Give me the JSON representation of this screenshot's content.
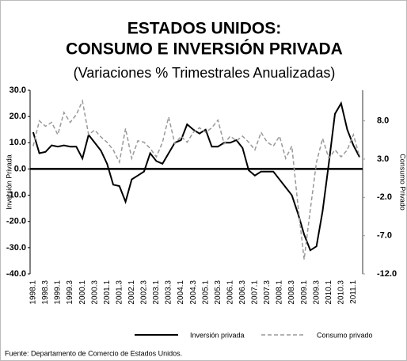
{
  "chart_data": {
    "type": "line",
    "title": [
      "ESTADOS UNIDOS:",
      "CONSUMO E INVERSIÓN PRIVADA"
    ],
    "subtitle": "(Variaciones % Trimestrales Anualizadas)",
    "y_label": "Inversión Privada",
    "y2_label": "Consumo Privado",
    "source": "Fuente: Departamento  de Comercio de Estados  Unidos.",
    "categories": [
      "1998.1",
      null,
      "1998.3",
      null,
      "1999.1",
      null,
      "1999.3",
      null,
      "2000.1",
      null,
      "2000.3",
      null,
      "2001.1",
      null,
      "2001.3",
      null,
      "2002.1",
      null,
      "2002.3",
      null,
      "2003.1",
      null,
      "2003.3",
      null,
      "2004.1",
      null,
      "2004.3",
      null,
      "2005.1",
      null,
      "2005.3",
      null,
      "2006.1",
      null,
      "2006.3",
      null,
      "2007.1",
      null,
      "2007.3",
      null,
      "2008.1",
      null,
      "2008.3",
      null,
      "2009.1",
      null,
      "2009.3",
      null,
      "2010.1",
      null,
      "2010.3",
      null,
      "2011.1",
      null
    ],
    "series": [
      {
        "name": "Inversión privada",
        "color": "#000000",
        "dash": false,
        "axis": "y",
        "values": [
          14,
          6,
          6.5,
          9,
          8.5,
          9,
          8.5,
          8.5,
          4,
          13,
          10,
          7,
          2,
          -6,
          -6.5,
          -12.5,
          -4,
          -2.5,
          -1,
          6,
          3,
          2,
          6,
          10,
          11,
          17,
          15,
          13.5,
          15,
          8.5,
          8.5,
          10,
          10,
          11,
          8,
          -0.5,
          -2.5,
          -1,
          -1,
          -1,
          -4,
          -7,
          -10,
          -17,
          -25,
          -31,
          -29.5,
          -16,
          2,
          21,
          25,
          15,
          9,
          4.5
        ]
      },
      {
        "name": "Consumo privado",
        "color": "#999999",
        "dash": true,
        "axis": "y2",
        "values": [
          4.7,
          8,
          7.3,
          7.8,
          6.2,
          9.1,
          7.8,
          8.8,
          10.6,
          6.2,
          6.8,
          5.9,
          5.2,
          4.2,
          2.6,
          7,
          3.1,
          5.4,
          5.2,
          4.4,
          3.3,
          5.2,
          8.5,
          5,
          6,
          5.2,
          6.5,
          7.1,
          6.5,
          7.1,
          8.1,
          5,
          6,
          5.4,
          6,
          5.2,
          4.2,
          6.5,
          5.2,
          4.7,
          6,
          3.1,
          4.7,
          -3.1,
          -10.1,
          -3.6,
          2.6,
          5.7,
          3.1,
          4.2,
          3.3,
          4.2,
          6.2,
          3.3
        ]
      }
    ],
    "ylim": [
      -40,
      30
    ],
    "yticks": [
      {
        "value": -40,
        "label": "-40.0"
      },
      {
        "value": -30,
        "label": "-30.0"
      },
      {
        "value": -20,
        "label": "-20.0"
      },
      {
        "value": -10,
        "label": "-10.0"
      },
      {
        "value": 0,
        "label": "0.0"
      },
      {
        "value": 10,
        "label": "10.0"
      },
      {
        "value": 20,
        "label": "20.0"
      },
      {
        "value": 30,
        "label": "30.0"
      }
    ],
    "y2lim": [
      -12,
      12
    ],
    "y2ticks": [
      {
        "value": -12,
        "label": "-12.0"
      },
      {
        "value": -7,
        "label": "-7.0"
      },
      {
        "value": -2,
        "label": "-2.0"
      },
      {
        "value": 3,
        "label": "3.0"
      },
      {
        "value": 8,
        "label": "8.0"
      }
    ],
    "legend": "bottom"
  }
}
